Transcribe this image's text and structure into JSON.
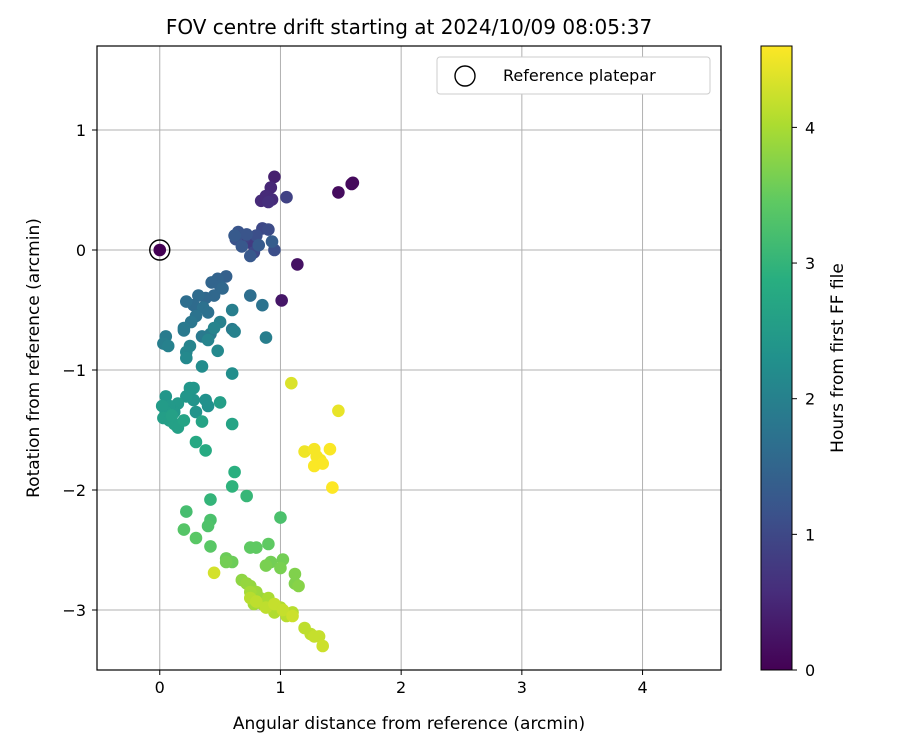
{
  "chart_data": {
    "type": "scatter",
    "title": "FOV centre drift starting at 2024/10/09 08:05:37",
    "xlabel": "Angular distance from reference (arcmin)",
    "ylabel": "Rotation from reference (arcmin)",
    "xlim": [
      -0.52,
      4.65
    ],
    "ylim": [
      -3.5,
      1.7
    ],
    "xticks": [
      0,
      1,
      2,
      3,
      4
    ],
    "yticks": [
      1,
      0,
      -1,
      -2,
      -3
    ],
    "xtick_labels": [
      "0",
      "1",
      "2",
      "3",
      "4"
    ],
    "ytick_labels": [
      "1",
      "0",
      "−1",
      "−2",
      "−3"
    ],
    "grid": true,
    "legend": {
      "placement": "top-right",
      "entries": [
        {
          "label": "Reference platepar",
          "marker": "open-circle"
        }
      ]
    },
    "colorbar": {
      "label": "Hours from first FF file",
      "colormap": "viridis",
      "range": [
        0,
        4.6
      ],
      "ticks": [
        0,
        1,
        2,
        3,
        4
      ],
      "tick_labels": [
        "0",
        "1",
        "2",
        "3",
        "4"
      ]
    },
    "reference_point": {
      "x": 0,
      "y": 0,
      "value": 0
    },
    "points": [
      [
        1.59,
        0.55,
        0.1
      ],
      [
        1.48,
        0.48,
        0.15
      ],
      [
        1.6,
        0.56,
        0.12
      ],
      [
        1.14,
        -0.12,
        0.22
      ],
      [
        1.01,
        -0.42,
        0.28
      ],
      [
        0.95,
        0.61,
        0.4
      ],
      [
        0.92,
        0.52,
        0.5
      ],
      [
        0.84,
        0.41,
        0.55
      ],
      [
        0.88,
        0.45,
        0.55
      ],
      [
        0.93,
        0.42,
        0.55
      ],
      [
        0.9,
        0.4,
        0.6
      ],
      [
        1.05,
        0.44,
        0.9
      ],
      [
        0.75,
        0.06,
        0.8
      ],
      [
        0.7,
        0.1,
        0.9
      ],
      [
        0.78,
        -0.02,
        1.0
      ],
      [
        0.85,
        0.18,
        1.0
      ],
      [
        0.9,
        0.17,
        1.05
      ],
      [
        0.95,
        0.0,
        1.1
      ],
      [
        0.8,
        0.12,
        1.1
      ],
      [
        0.63,
        0.09,
        1.15
      ],
      [
        0.65,
        0.15,
        1.2
      ],
      [
        0.72,
        0.13,
        1.2
      ],
      [
        0.68,
        0.03,
        1.25
      ],
      [
        0.75,
        -0.05,
        1.25
      ],
      [
        0.62,
        0.12,
        1.3
      ],
      [
        0.82,
        0.04,
        1.3
      ],
      [
        0.93,
        0.07,
        1.35
      ],
      [
        0.55,
        -0.22,
        1.4
      ],
      [
        0.48,
        -0.24,
        1.45
      ],
      [
        0.43,
        -0.27,
        1.5
      ],
      [
        0.5,
        -0.3,
        1.5
      ],
      [
        0.45,
        -0.38,
        1.55
      ],
      [
        0.52,
        -0.32,
        1.55
      ],
      [
        0.38,
        -0.4,
        1.55
      ],
      [
        0.32,
        -0.38,
        1.6
      ],
      [
        0.28,
        -0.46,
        1.6
      ],
      [
        0.22,
        -0.43,
        1.65
      ],
      [
        0.36,
        -0.48,
        1.7
      ],
      [
        0.4,
        -0.52,
        1.7
      ],
      [
        0.3,
        -0.55,
        1.75
      ],
      [
        0.26,
        -0.6,
        1.8
      ],
      [
        0.2,
        -0.65,
        1.85
      ],
      [
        0.35,
        -0.72,
        1.85
      ],
      [
        0.42,
        -0.7,
        1.9
      ],
      [
        0.75,
        -0.38,
        1.65
      ],
      [
        0.85,
        -0.46,
        1.75
      ],
      [
        0.6,
        -0.66,
        1.9
      ],
      [
        0.88,
        -0.73,
        1.95
      ],
      [
        0.62,
        -0.68,
        2.0
      ],
      [
        0.5,
        -0.6,
        2.0
      ],
      [
        0.45,
        -0.65,
        2.05
      ],
      [
        0.4,
        -0.75,
        2.05
      ],
      [
        0.6,
        -0.5,
        1.95
      ],
      [
        0.05,
        -0.72,
        1.9
      ],
      [
        0.03,
        -0.78,
        1.95
      ],
      [
        0.07,
        -0.8,
        2.0
      ],
      [
        0.25,
        -0.8,
        2.05
      ],
      [
        0.22,
        -0.85,
        2.1
      ],
      [
        0.22,
        -0.9,
        2.15
      ],
      [
        0.48,
        -0.84,
        2.15
      ],
      [
        0.35,
        -0.97,
        2.2
      ],
      [
        0.6,
        -1.03,
        2.25
      ],
      [
        0.2,
        -0.67,
        1.85
      ],
      [
        0.38,
        -1.25,
        2.3
      ],
      [
        0.4,
        -1.3,
        2.3
      ],
      [
        0.3,
        -1.35,
        2.35
      ],
      [
        0.28,
        -1.25,
        2.35
      ],
      [
        0.25,
        -1.15,
        2.4
      ],
      [
        0.22,
        -1.22,
        2.4
      ],
      [
        0.15,
        -1.28,
        2.45
      ],
      [
        0.12,
        -1.35,
        2.45
      ],
      [
        0.08,
        -1.3,
        2.45
      ],
      [
        0.05,
        -1.35,
        2.5
      ],
      [
        0.02,
        -1.3,
        2.5
      ],
      [
        0.03,
        -1.4,
        2.55
      ],
      [
        0.08,
        -1.42,
        2.55
      ],
      [
        0.12,
        -1.45,
        2.6
      ],
      [
        0.15,
        -1.48,
        2.6
      ],
      [
        0.1,
        -1.38,
        2.6
      ],
      [
        0.2,
        -1.42,
        2.65
      ],
      [
        0.05,
        -1.22,
        2.4
      ],
      [
        0.28,
        -1.15,
        2.4
      ],
      [
        0.5,
        -1.27,
        2.55
      ],
      [
        0.6,
        -1.45,
        2.65
      ],
      [
        0.35,
        -1.43,
        2.65
      ],
      [
        0.3,
        -1.6,
        2.75
      ],
      [
        0.38,
        -1.67,
        2.8
      ],
      [
        0.62,
        -1.85,
        2.9
      ],
      [
        0.6,
        -1.97,
        2.95
      ],
      [
        0.42,
        -2.08,
        3.0
      ],
      [
        0.72,
        -2.05,
        3.05
      ],
      [
        1.0,
        -2.23,
        3.25
      ],
      [
        0.22,
        -2.18,
        3.2
      ],
      [
        0.42,
        -2.25,
        3.25
      ],
      [
        0.4,
        -2.3,
        3.3
      ],
      [
        0.2,
        -2.33,
        3.35
      ],
      [
        0.3,
        -2.4,
        3.4
      ],
      [
        0.42,
        -2.47,
        3.4
      ],
      [
        0.75,
        -2.48,
        3.45
      ],
      [
        0.8,
        -2.48,
        3.45
      ],
      [
        0.9,
        -2.45,
        3.45
      ],
      [
        0.55,
        -2.57,
        3.55
      ],
      [
        0.6,
        -2.6,
        3.55
      ],
      [
        0.55,
        -2.6,
        3.6
      ],
      [
        1.02,
        -2.58,
        3.6
      ],
      [
        0.92,
        -2.6,
        3.6
      ],
      [
        0.88,
        -2.63,
        3.65
      ],
      [
        1.0,
        -2.65,
        3.65
      ],
      [
        1.12,
        -2.7,
        3.7
      ],
      [
        1.12,
        -2.78,
        3.7
      ],
      [
        1.15,
        -2.8,
        3.75
      ],
      [
        0.68,
        -2.75,
        3.8
      ],
      [
        0.72,
        -2.78,
        3.85
      ],
      [
        0.75,
        -2.8,
        3.85
      ],
      [
        0.8,
        -2.85,
        3.9
      ],
      [
        0.83,
        -2.9,
        3.9
      ],
      [
        0.78,
        -2.95,
        3.95
      ],
      [
        0.75,
        -2.85,
        3.95
      ],
      [
        0.85,
        -2.95,
        4.0
      ],
      [
        0.9,
        -2.9,
        4.0
      ],
      [
        0.95,
        -3.02,
        4.05
      ],
      [
        1.0,
        -2.98,
        4.05
      ],
      [
        1.05,
        -3.05,
        4.1
      ],
      [
        1.1,
        -3.02,
        4.1
      ],
      [
        1.2,
        -3.15,
        4.15
      ],
      [
        1.25,
        -3.2,
        4.15
      ],
      [
        1.28,
        -3.22,
        4.2
      ],
      [
        1.32,
        -3.22,
        4.2
      ],
      [
        1.35,
        -3.3,
        4.25
      ],
      [
        0.75,
        -2.9,
        4.1
      ],
      [
        0.8,
        -2.93,
        4.15
      ],
      [
        0.88,
        -2.98,
        4.15
      ],
      [
        0.95,
        -2.95,
        4.2
      ],
      [
        1.02,
        -3.0,
        4.2
      ],
      [
        1.1,
        -3.05,
        4.25
      ],
      [
        0.45,
        -2.69,
        4.3
      ],
      [
        1.09,
        -1.11,
        4.35
      ],
      [
        1.48,
        -1.34,
        4.45
      ],
      [
        1.2,
        -1.68,
        4.5
      ],
      [
        1.28,
        -1.66,
        4.55
      ],
      [
        1.3,
        -1.72,
        4.55
      ],
      [
        1.33,
        -1.75,
        4.55
      ],
      [
        1.28,
        -1.8,
        4.58
      ],
      [
        1.35,
        -1.78,
        4.58
      ],
      [
        1.41,
        -1.66,
        4.58
      ],
      [
        1.43,
        -1.98,
        4.6
      ]
    ]
  }
}
